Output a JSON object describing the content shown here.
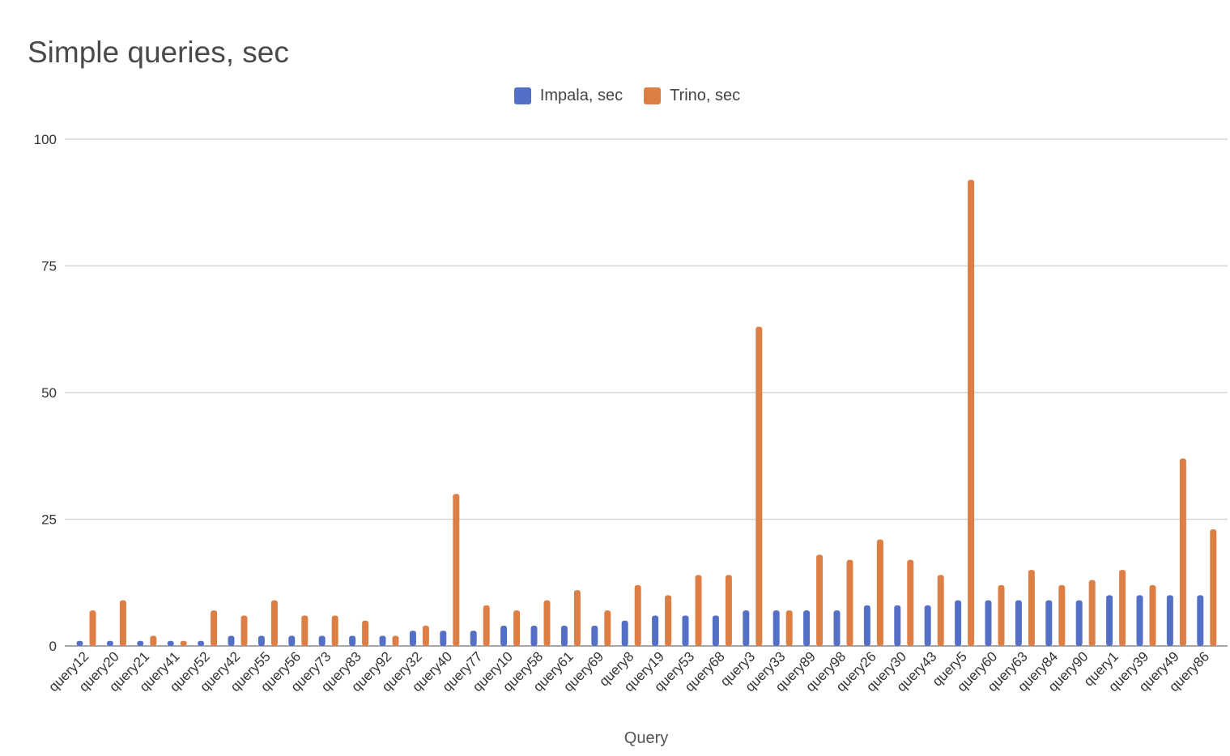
{
  "chart_data": {
    "type": "bar",
    "title": "Simple queries, sec",
    "xlabel": "Query",
    "ylabel": "",
    "ylim": [
      0,
      100
    ],
    "yticks": [
      0,
      25,
      50,
      75,
      100
    ],
    "grid": true,
    "legend_position": "top-center",
    "categories": [
      "query12",
      "query20",
      "query21",
      "query41",
      "query52",
      "query42",
      "query55",
      "query56",
      "query73",
      "query83",
      "query92",
      "query32",
      "query40",
      "query77",
      "query10",
      "query58",
      "query61",
      "query69",
      "query8",
      "query19",
      "query53",
      "query68",
      "query3",
      "query33",
      "query89",
      "query98",
      "query26",
      "query30",
      "query43",
      "query5",
      "query60",
      "query63",
      "query84",
      "query90",
      "query1",
      "query39",
      "query49",
      "query86"
    ],
    "series": [
      {
        "name": "Impala, sec",
        "color": "#5470c6",
        "values": [
          1,
          1,
          1,
          1,
          1,
          2,
          2,
          2,
          2,
          2,
          2,
          3,
          3,
          3,
          4,
          4,
          4,
          4,
          5,
          6,
          6,
          6,
          7,
          7,
          7,
          7,
          8,
          8,
          8,
          9,
          9,
          9,
          9,
          9,
          10,
          10,
          10,
          10
        ]
      },
      {
        "name": "Trino, sec",
        "color": "#dd7f45",
        "values": [
          7,
          9,
          2,
          1,
          7,
          6,
          9,
          6,
          6,
          5,
          2,
          4,
          30,
          8,
          7,
          9,
          11,
          7,
          12,
          10,
          14,
          14,
          63,
          7,
          18,
          17,
          21,
          17,
          14,
          92,
          12,
          15,
          12,
          13,
          15,
          12,
          37,
          23
        ]
      }
    ]
  }
}
